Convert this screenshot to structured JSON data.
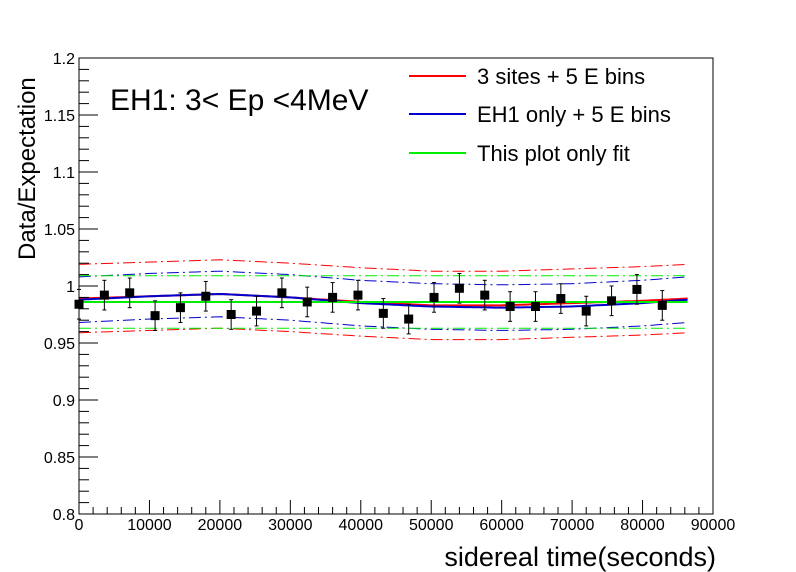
{
  "chart_data": {
    "type": "scatter",
    "title": "EH1: 3< Ep <4MeV",
    "xlabel": "sidereal time(seconds)",
    "ylabel": "Data/Expectation",
    "xlim": [
      0,
      90000
    ],
    "ylim": [
      0.8,
      1.2
    ],
    "x_ticks": [
      0,
      10000,
      20000,
      30000,
      40000,
      50000,
      60000,
      70000,
      80000,
      90000
    ],
    "y_ticks": [
      0.8,
      0.85,
      0.9,
      0.95,
      1,
      1.05,
      1.1,
      1.15,
      1.2
    ],
    "x_tick_labels": [
      "0",
      "10000",
      "20000",
      "30000",
      "40000",
      "50000",
      "60000",
      "70000",
      "80000",
      "90000"
    ],
    "y_tick_labels": [
      "0.8",
      "0.85",
      "0.9",
      "0.95",
      "1",
      "1.05",
      "1.1",
      "1.15",
      "1.2"
    ],
    "legend_position": "top-right",
    "grid": false,
    "points": {
      "x": [
        0,
        3600,
        7200,
        10800,
        14400,
        18000,
        21600,
        25200,
        28800,
        32400,
        36000,
        39600,
        43200,
        46800,
        50400,
        54000,
        57600,
        61200,
        64800,
        68400,
        72000,
        75600,
        79200,
        82800
      ],
      "y": [
        0.984,
        0.992,
        0.994,
        0.974,
        0.981,
        0.991,
        0.975,
        0.978,
        0.994,
        0.986,
        0.99,
        0.992,
        0.976,
        0.971,
        0.99,
        0.998,
        0.992,
        0.982,
        0.982,
        0.989,
        0.978,
        0.987,
        0.997,
        0.983
      ],
      "err": [
        0.013,
        0.013,
        0.013,
        0.013,
        0.013,
        0.013,
        0.013,
        0.013,
        0.013,
        0.013,
        0.013,
        0.013,
        0.013,
        0.013,
        0.013,
        0.013,
        0.013,
        0.013,
        0.013,
        0.013,
        0.013,
        0.013,
        0.013,
        0.013
      ],
      "color": "#000000"
    },
    "series": [
      {
        "name": "3 sites + 5 E bins",
        "color": "#ff0000",
        "x": [
          0,
          10000,
          20000,
          30000,
          40000,
          50000,
          60000,
          70000,
          80000,
          86400
        ],
        "y": [
          0.989,
          0.991,
          0.993,
          0.99,
          0.986,
          0.983,
          0.983,
          0.985,
          0.987,
          0.989
        ],
        "band": 0.03
      },
      {
        "name": "EH1 only + 5 E bins",
        "color": "#0000cc",
        "x": [
          0,
          10000,
          20000,
          30000,
          40000,
          50000,
          60000,
          70000,
          80000,
          86400
        ],
        "y": [
          0.988,
          0.991,
          0.993,
          0.99,
          0.985,
          0.982,
          0.981,
          0.982,
          0.985,
          0.988
        ],
        "band": 0.02
      },
      {
        "name": "This plot only fit",
        "color": "#00ee00",
        "x": [
          0,
          86400
        ],
        "y": [
          0.986,
          0.986
        ],
        "band": 0.023
      }
    ]
  }
}
